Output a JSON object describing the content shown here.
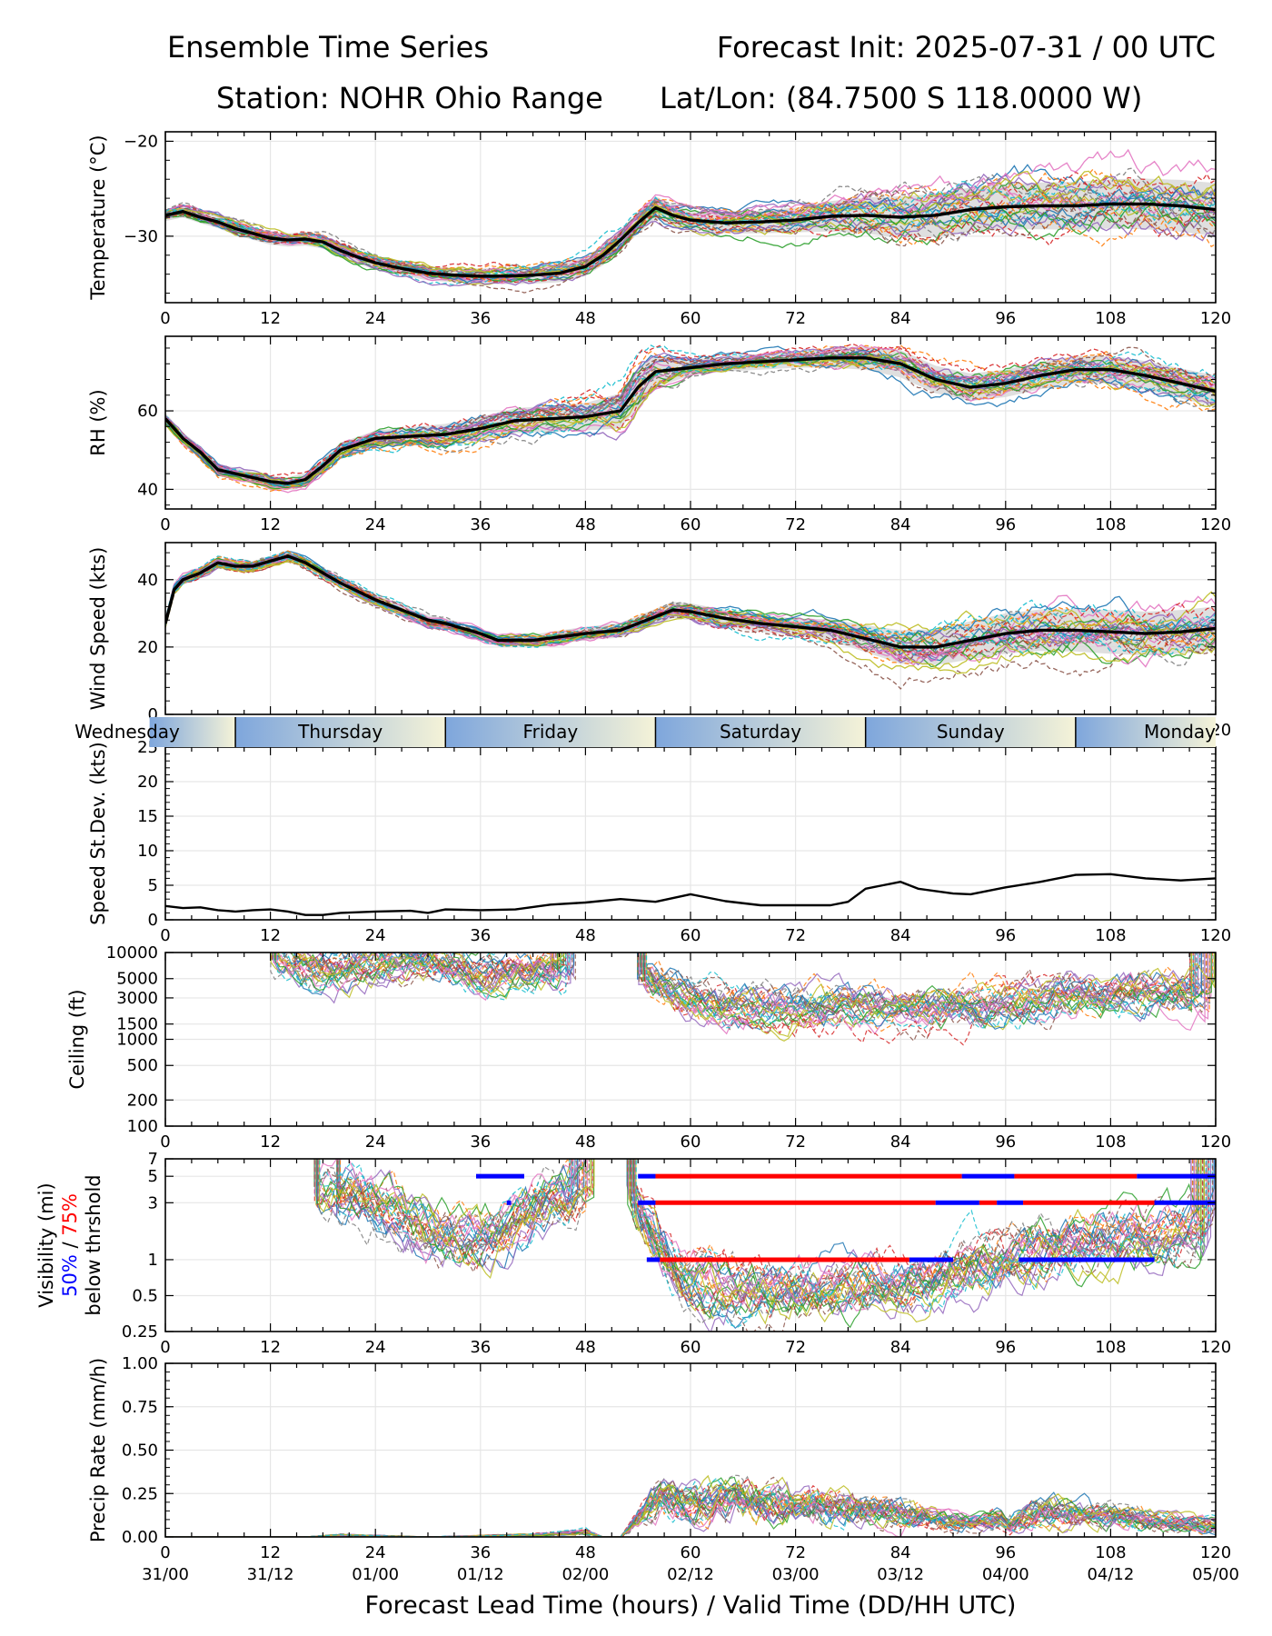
{
  "header": {
    "title_left": "Ensemble Time Series",
    "title_right": "Forecast Init: 2025-07-31 / 00 UTC",
    "station": "Station: NOHR Ohio Range",
    "latlon": "Lat/Lon: (84.7500 S 118.0000 W)"
  },
  "xaxis": {
    "label": "Forecast Lead Time (hours) / Valid Time (DD/HH UTC)",
    "range": [
      0,
      120
    ],
    "hour_ticks": [
      "0",
      "12",
      "24",
      "36",
      "48",
      "60",
      "72",
      "84",
      "96",
      "108",
      "120"
    ],
    "valid_time_ticks": [
      "31/00",
      "31/12",
      "01/00",
      "01/12",
      "02/00",
      "02/12",
      "03/00",
      "03/12",
      "04/00",
      "04/12",
      "05/00"
    ]
  },
  "day_band": {
    "labels": [
      "Wednesday",
      "Thursday",
      "Friday",
      "Saturday",
      "Sunday",
      "Monday"
    ],
    "day_boundaries_hour": [
      8,
      32,
      56,
      80,
      104
    ]
  },
  "visibility_label": {
    "line1": "Visibility (mi)",
    "pct50": "50%",
    "slash": " / ",
    "pct75": "75%",
    "line3": "below thrshold"
  },
  "colors": {
    "ensemble_mean": "#000000",
    "spread_band": "#d9d9d9",
    "pct50": "#0000ff",
    "pct75": "#ff0000",
    "day_band_blue": "#7ea6dc",
    "day_band_cream": "#f5f3d8",
    "grid": "#e6e6e6",
    "member_palette": [
      "#1f77b4",
      "#ff7f0e",
      "#2ca02c",
      "#d62728",
      "#9467bd",
      "#8c564b",
      "#e377c2",
      "#7f7f7f",
      "#bcbd22",
      "#17becf"
    ]
  },
  "chart_data": [
    {
      "id": "temperature",
      "type": "line",
      "ylabel": "Temperature (°C)",
      "ylim": [
        -37,
        -19
      ],
      "yticks": [
        -20,
        -30
      ],
      "grid": true,
      "ensemble_members": 30,
      "member_spread_x": [
        0,
        12,
        24,
        36,
        48,
        56,
        60,
        72,
        84,
        96,
        108,
        120
      ],
      "member_spread_y": [
        0.6,
        0.7,
        0.7,
        0.8,
        1.0,
        1.2,
        1.0,
        1.3,
        2.2,
        2.4,
        2.6,
        2.8
      ],
      "series": [
        {
          "name": "ensemble mean",
          "x": [
            0,
            2,
            4,
            6,
            8,
            10,
            12,
            14,
            16,
            18,
            20,
            22,
            24,
            27,
            30,
            33,
            36,
            39,
            42,
            45,
            48,
            50,
            52,
            54,
            56,
            58,
            60,
            64,
            68,
            72,
            76,
            80,
            84,
            88,
            92,
            96,
            100,
            104,
            108,
            112,
            116,
            120
          ],
          "y": [
            -27.8,
            -27.4,
            -28.0,
            -28.5,
            -29.2,
            -29.7,
            -30.2,
            -30.4,
            -30.3,
            -30.6,
            -31.5,
            -32.2,
            -32.8,
            -33.4,
            -33.9,
            -34.1,
            -34.2,
            -34.2,
            -34.1,
            -33.9,
            -33.2,
            -32.0,
            -30.4,
            -28.6,
            -27.0,
            -27.8,
            -28.3,
            -28.6,
            -28.5,
            -28.3,
            -27.9,
            -27.8,
            -28.0,
            -27.8,
            -27.2,
            -26.9,
            -26.8,
            -26.8,
            -26.6,
            -26.6,
            -26.8,
            -27.2
          ]
        }
      ]
    },
    {
      "id": "rh",
      "type": "line",
      "ylabel": "RH (%)",
      "ylim": [
        35,
        79
      ],
      "yticks": [
        40,
        60
      ],
      "grid": true,
      "ensemble_members": 30,
      "member_spread_x": [
        0,
        12,
        24,
        36,
        48,
        54,
        60,
        72,
        84,
        96,
        108,
        120
      ],
      "member_spread_y": [
        1.5,
        1.5,
        2.0,
        3.0,
        3.5,
        5.0,
        2.0,
        2.0,
        3.5,
        3.5,
        3.5,
        4.0
      ],
      "series": [
        {
          "name": "ensemble mean",
          "x": [
            0,
            2,
            4,
            6,
            8,
            10,
            12,
            14,
            16,
            18,
            20,
            24,
            28,
            32,
            36,
            40,
            44,
            48,
            52,
            54,
            56,
            60,
            64,
            68,
            72,
            76,
            80,
            84,
            88,
            92,
            96,
            100,
            104,
            108,
            112,
            116,
            120
          ],
          "y": [
            58.0,
            53.0,
            49.5,
            45.0,
            44.0,
            43.0,
            42.0,
            41.5,
            42.5,
            46.0,
            50.0,
            53.0,
            53.5,
            54.0,
            55.5,
            57.5,
            58.0,
            58.5,
            60.0,
            66.0,
            70.0,
            71.0,
            72.0,
            72.5,
            73.0,
            73.5,
            73.5,
            72.0,
            68.0,
            66.0,
            67.0,
            69.0,
            70.5,
            70.5,
            69.0,
            67.0,
            65.0
          ]
        }
      ]
    },
    {
      "id": "wind_speed",
      "type": "line",
      "ylabel": "Wind Speed (kts)",
      "ylim": [
        0,
        51
      ],
      "yticks": [
        0,
        20,
        40
      ],
      "grid": true,
      "ensemble_members": 30,
      "member_spread_x": [
        0,
        12,
        24,
        36,
        48,
        60,
        72,
        80,
        84,
        96,
        108,
        120
      ],
      "member_spread_y": [
        1.5,
        1.5,
        1.5,
        1.5,
        2.0,
        2.5,
        2.5,
        4.0,
        5.0,
        6.0,
        6.5,
        6.5
      ],
      "series": [
        {
          "name": "ensemble mean",
          "x": [
            0,
            1,
            2,
            4,
            6,
            8,
            10,
            12,
            14,
            16,
            18,
            20,
            24,
            28,
            30,
            32,
            36,
            38,
            42,
            48,
            52,
            56,
            58,
            60,
            64,
            68,
            72,
            76,
            80,
            84,
            88,
            92,
            96,
            100,
            104,
            108,
            112,
            116,
            120
          ],
          "y": [
            27,
            37,
            40,
            42,
            45,
            44,
            44,
            45.5,
            47,
            45,
            42,
            39,
            34,
            30,
            28,
            27,
            24,
            22,
            22,
            24,
            25,
            29,
            31,
            30.5,
            28.5,
            27,
            26,
            25,
            22.5,
            20,
            20,
            22,
            24,
            25,
            25,
            24.5,
            24,
            24.5,
            25.5
          ]
        }
      ]
    },
    {
      "id": "speed_stdev",
      "type": "line",
      "ylabel": "Speed St.Dev. (kts)",
      "ylim": [
        0,
        25
      ],
      "yticks": [
        0,
        5,
        10,
        15,
        20,
        25
      ],
      "grid": true,
      "series": [
        {
          "name": "ensemble std dev",
          "x": [
            0,
            2,
            4,
            6,
            8,
            10,
            12,
            14,
            16,
            18,
            20,
            24,
            28,
            30,
            32,
            36,
            40,
            44,
            48,
            52,
            56,
            60,
            64,
            68,
            72,
            76,
            78,
            80,
            82,
            84,
            86,
            90,
            92,
            96,
            100,
            104,
            108,
            112,
            116,
            120
          ],
          "y": [
            2.0,
            1.7,
            1.8,
            1.4,
            1.2,
            1.4,
            1.5,
            1.2,
            0.7,
            0.7,
            1.0,
            1.2,
            1.3,
            1.0,
            1.5,
            1.4,
            1.5,
            2.2,
            2.5,
            3.0,
            2.6,
            3.7,
            2.7,
            2.1,
            2.1,
            2.1,
            2.6,
            4.5,
            5.0,
            5.5,
            4.5,
            3.8,
            3.7,
            4.7,
            5.5,
            6.5,
            6.6,
            6.0,
            5.7,
            6.0
          ]
        }
      ]
    },
    {
      "id": "ceiling",
      "type": "line",
      "ylabel": "Ceiling (ft)",
      "yscale": "log",
      "ylim": [
        100,
        10000
      ],
      "yticks": [
        100,
        200,
        500,
        1000,
        1500,
        3000,
        5000,
        10000
      ],
      "grid": true,
      "ensemble_members": 30,
      "member_segments": [
        {
          "x_start": 12,
          "x_end": 47,
          "typical_ft": [
            9000,
            5500,
            7000,
            8000,
            6000,
            6000,
            6500
          ]
        },
        {
          "x_start": 53,
          "x_end": 120,
          "typical_ft": [
            7000,
            2600,
            2300,
            2300,
            2300,
            2500,
            3200,
            3800,
            3800
          ]
        }
      ]
    },
    {
      "id": "visibility",
      "type": "line",
      "ylabel": "Visibility (mi)",
      "yscale": "log",
      "ylim": [
        0.25,
        7
      ],
      "yticks": [
        0.25,
        0.5,
        1,
        3,
        5,
        7
      ],
      "grid": true,
      "ensemble_members": 30,
      "member_segments": [
        {
          "x_start": 17,
          "x_end": 49,
          "typical_mi": [
            3.5,
            3.5,
            2.5,
            1.6,
            1.4,
            1.8,
            3.0,
            5.0
          ]
        },
        {
          "x_start": 52,
          "x_end": 120,
          "typical_mi": [
            5.0,
            0.7,
            0.55,
            0.55,
            0.6,
            0.65,
            0.9,
            1.2,
            1.5,
            1.5,
            2.0
          ]
        }
      ],
      "threshold_segments": [
        {
          "pct": 50,
          "threshold_mi": 5,
          "x_start": 35.5,
          "x_end": 41
        },
        {
          "pct": 50,
          "threshold_mi": 3,
          "x_start": 39,
          "x_end": 39.5
        },
        {
          "pct": 50,
          "threshold_mi": 5,
          "x_start": 54,
          "x_end": 56
        },
        {
          "pct": 75,
          "threshold_mi": 5,
          "x_start": 56,
          "x_end": 91
        },
        {
          "pct": 50,
          "threshold_mi": 5,
          "x_start": 91,
          "x_end": 97
        },
        {
          "pct": 75,
          "threshold_mi": 5,
          "x_start": 97,
          "x_end": 111
        },
        {
          "pct": 50,
          "threshold_mi": 5,
          "x_start": 111,
          "x_end": 120
        },
        {
          "pct": 50,
          "threshold_mi": 3,
          "x_start": 54,
          "x_end": 56
        },
        {
          "pct": 75,
          "threshold_mi": 3,
          "x_start": 56,
          "x_end": 88
        },
        {
          "pct": 50,
          "threshold_mi": 3,
          "x_start": 88,
          "x_end": 93
        },
        {
          "pct": 75,
          "threshold_mi": 3,
          "x_start": 93,
          "x_end": 95
        },
        {
          "pct": 50,
          "threshold_mi": 3,
          "x_start": 95,
          "x_end": 98
        },
        {
          "pct": 75,
          "threshold_mi": 3,
          "x_start": 98,
          "x_end": 113
        },
        {
          "pct": 50,
          "threshold_mi": 3,
          "x_start": 113,
          "x_end": 120
        },
        {
          "pct": 50,
          "threshold_mi": 1,
          "x_start": 55,
          "x_end": 56.5
        },
        {
          "pct": 75,
          "threshold_mi": 1,
          "x_start": 56.5,
          "x_end": 85
        },
        {
          "pct": 50,
          "threshold_mi": 1,
          "x_start": 85,
          "x_end": 90
        },
        {
          "pct": 50,
          "threshold_mi": 1,
          "x_start": 97.5,
          "x_end": 104
        },
        {
          "pct": 50,
          "threshold_mi": 1,
          "x_start": 104,
          "x_end": 113
        }
      ]
    },
    {
      "id": "precip_rate",
      "type": "line",
      "ylabel": "Precip Rate (mm/h)",
      "ylim": [
        0,
        1
      ],
      "yticks": [
        0.0,
        0.25,
        0.5,
        0.75,
        1.0
      ],
      "ytick_labels": [
        "0.00",
        "0.25",
        "0.50",
        "0.75",
        "1.00"
      ],
      "grid": true,
      "ensemble_members": 30,
      "member_envelope_x": [
        0,
        16,
        20,
        30,
        40,
        46,
        48,
        50,
        52,
        54,
        56,
        60,
        64,
        70,
        76,
        82,
        88,
        92,
        96,
        100,
        104,
        108,
        112,
        116,
        120
      ],
      "member_envelope_y": [
        0.0,
        0.0,
        0.01,
        0.0,
        0.01,
        0.02,
        0.03,
        0.0,
        0.0,
        0.1,
        0.2,
        0.18,
        0.2,
        0.18,
        0.17,
        0.15,
        0.1,
        0.08,
        0.1,
        0.15,
        0.13,
        0.12,
        0.1,
        0.08,
        0.07
      ]
    }
  ]
}
